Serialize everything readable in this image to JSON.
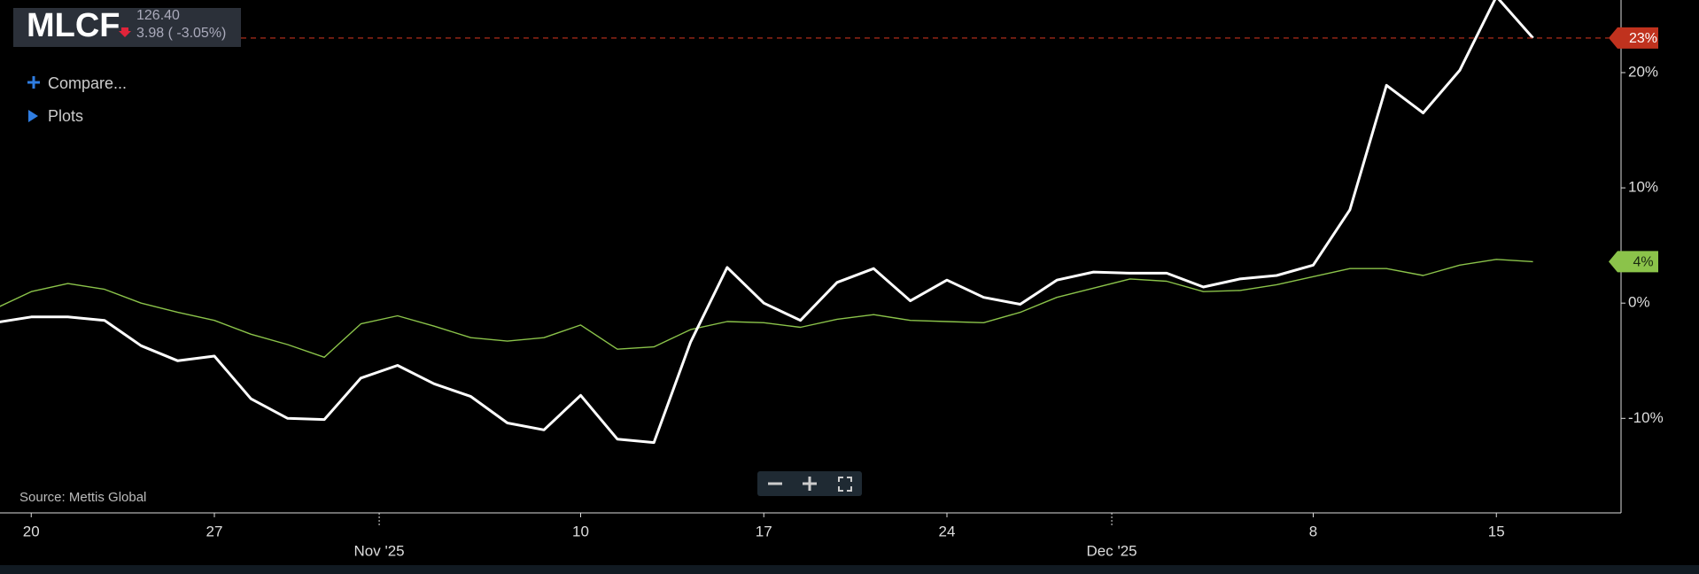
{
  "header": {
    "ticker": "MLCF",
    "price": "126.40",
    "change": "3.98 ( -3.05%)"
  },
  "controls": {
    "compare": "Compare...",
    "plots": "Plots"
  },
  "source": "Source: Mettis Global",
  "chart_data": {
    "type": "line",
    "x": [
      "2025-10-17",
      "2025-10-20",
      "2025-10-21",
      "2025-10-22",
      "2025-10-23",
      "2025-10-24",
      "2025-10-27",
      "2025-10-28",
      "2025-10-29",
      "2025-10-30",
      "2025-10-31",
      "2025-11-03",
      "2025-11-04",
      "2025-11-05",
      "2025-11-06",
      "2025-11-07",
      "2025-11-10",
      "2025-11-11",
      "2025-11-12",
      "2025-11-13",
      "2025-11-14",
      "2025-11-17",
      "2025-11-18",
      "2025-11-19",
      "2025-11-20",
      "2025-11-21",
      "2025-11-24",
      "2025-11-25",
      "2025-11-26",
      "2025-11-27",
      "2025-11-28",
      "2025-12-01",
      "2025-12-02",
      "2025-12-03",
      "2025-12-04",
      "2025-12-05",
      "2025-12-08",
      "2025-12-09",
      "2025-12-10",
      "2025-12-11",
      "2025-12-12",
      "2025-12-15",
      "2025-12-16"
    ],
    "series": [
      {
        "color": "#ffffff",
        "end_label": "23%",
        "end_color": "#c0321e",
        "values": [
          -1.7,
          -1.2,
          -1.2,
          -1.5,
          -3.7,
          -5.0,
          -4.6,
          -8.3,
          -10.0,
          -10.1,
          -6.5,
          -5.4,
          -7.0,
          -8.1,
          -10.4,
          -11.0,
          -8.0,
          -11.8,
          -12.1,
          -3.4,
          3.1,
          0.0,
          -1.5,
          1.8,
          3.0,
          0.2,
          2.0,
          0.5,
          -0.1,
          2.0,
          2.7,
          2.6,
          2.6,
          1.4,
          2.1,
          2.4,
          3.3,
          8.1,
          18.9,
          16.5,
          20.2,
          26.6,
          23
        ]
      },
      {
        "color": "#8bc34a",
        "end_label": "4%",
        "end_color": "#8bc34a",
        "values": [
          -0.5,
          1.0,
          1.7,
          1.2,
          0.0,
          -0.8,
          -1.5,
          -2.7,
          -3.6,
          -4.7,
          -1.8,
          -1.1,
          -2.0,
          -3.0,
          -3.3,
          -3.0,
          -1.9,
          -4.0,
          -3.8,
          -2.3,
          -1.6,
          -1.7,
          -2.1,
          -1.4,
          -1.0,
          -1.5,
          -1.6,
          -1.7,
          -0.8,
          0.5,
          1.3,
          2.1,
          1.9,
          1.0,
          1.1,
          1.6,
          2.3,
          3.0,
          3.0,
          2.4,
          3.3,
          3.8,
          3.6
        ]
      }
    ],
    "ylim": [
      -18.2,
      26.3
    ],
    "yticks": [
      {
        "value": -10,
        "label": "-10%"
      },
      {
        "value": 0,
        "label": "0%"
      },
      {
        "value": 10,
        "label": "10%"
      },
      {
        "value": 20,
        "label": "20%"
      }
    ],
    "xticks": [
      {
        "value": "2025-10-20",
        "label": "20"
      },
      {
        "value": "2025-10-27",
        "label": "27"
      },
      {
        "value": "2025-11-10",
        "label": "10"
      },
      {
        "value": "2025-11-17",
        "label": "17"
      },
      {
        "value": "2025-11-24",
        "label": "24"
      },
      {
        "value": "2025-12-08",
        "label": "8"
      },
      {
        "value": "2025-12-15",
        "label": "15"
      }
    ],
    "month_ticks": [
      {
        "value": "2025-11-03",
        "label": "Nov '25"
      },
      {
        "value": "2025-12-01",
        "label": "Dec '25"
      }
    ]
  }
}
